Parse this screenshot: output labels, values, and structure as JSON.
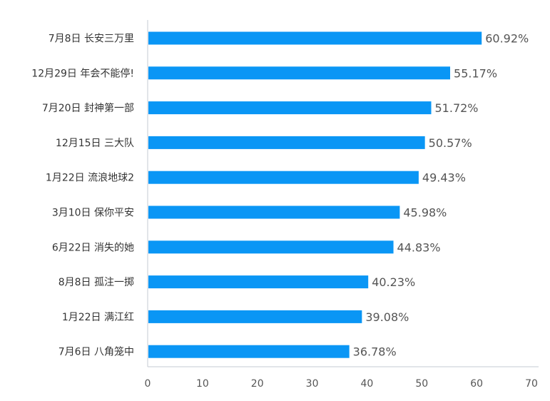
{
  "chart_data": {
    "type": "bar",
    "orientation": "horizontal",
    "title": "",
    "xlabel": "",
    "ylabel": "",
    "categories": [
      "7月8日 长安三万里",
      "12月29日 年会不能停!",
      "7月20日 封神第一部",
      "12月15日 三大队",
      "1月22日 流浪地球2",
      "3月10日 保你平安",
      "6月22日 消失的她",
      "8月8日 孤注一掷",
      "1月22日 满江红",
      "7月6日 八角笼中"
    ],
    "values": [
      60.92,
      55.17,
      51.72,
      50.57,
      49.43,
      45.98,
      44.83,
      40.23,
      39.08,
      36.78
    ],
    "value_labels": [
      "60.92%",
      "55.17%",
      "51.72%",
      "50.57%",
      "49.43%",
      "45.98%",
      "44.83%",
      "40.23%",
      "39.08%",
      "36.78%"
    ],
    "xlim": [
      0,
      70
    ],
    "xticks": [
      0,
      10,
      20,
      30,
      40,
      50,
      60,
      70
    ],
    "bar_color": "#0a96f5",
    "grid": false,
    "legend": "none"
  }
}
